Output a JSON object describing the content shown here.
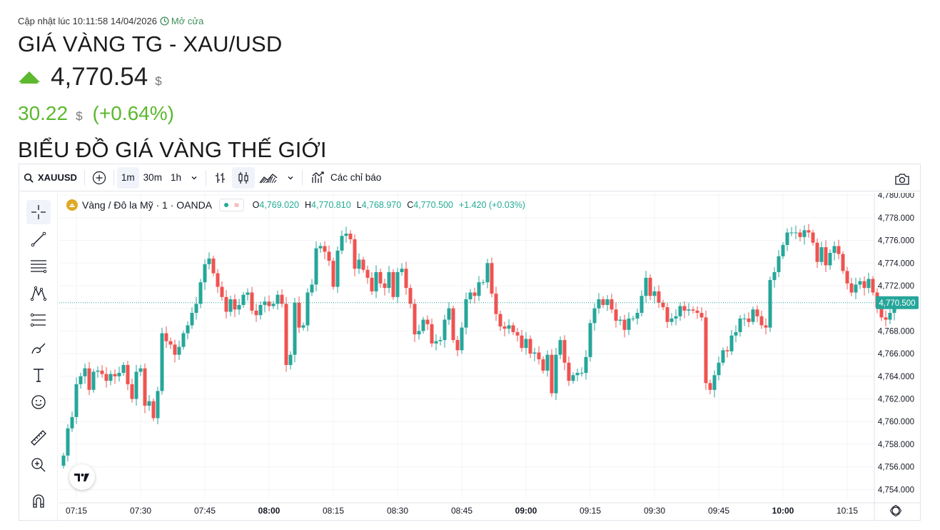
{
  "header": {
    "updated": "Cập nhật lúc 10:11:58 14/04/2026",
    "market_status": "Mở cửa",
    "title": "GIÁ VÀNG TG - XAU/USD",
    "price": "4,770.54",
    "price_currency": "$",
    "change": "30.22",
    "change_currency": "$",
    "change_pct": "(+0.64%)",
    "section_title": "BIỂU ĐỒ GIÁ VÀNG THẾ GIỚI"
  },
  "toolbar": {
    "symbol": "XAUUSD",
    "intervals": [
      "1m",
      "30m",
      "1h"
    ],
    "active_interval": "1m",
    "indicators_label": "Các chỉ báo"
  },
  "legend": {
    "name": "Vàng / Đô la Mỹ · 1 · OANDA",
    "o_label": "O",
    "o": "4,769.020",
    "h_label": "H",
    "h": "4,770.810",
    "l_label": "L",
    "l": "4,768.970",
    "c_label": "C",
    "c": "4,770.500",
    "change": "+1.420 (+0.03%)"
  },
  "colors": {
    "up": "#26a69a",
    "down": "#ef5350",
    "accent_green": "#5cb82e",
    "price_tag": "#26a69a"
  },
  "chart_data": {
    "type": "candlestick",
    "interval": "1m",
    "x_ticks": [
      "07:15",
      "07:30",
      "07:45",
      "08:00",
      "08:15",
      "08:30",
      "08:45",
      "09:00",
      "09:15",
      "09:30",
      "09:45",
      "10:00",
      "10:15"
    ],
    "x_ticks_bold": [
      "08:00",
      "09:00",
      "10:00"
    ],
    "y_ticks": [
      "4,756.000",
      "4,758.000",
      "4,760.000",
      "4,762.000",
      "4,764.000",
      "4,766.000",
      "4,768.000",
      "4,770.000",
      "4,772.000",
      "4,774.000",
      "4,776.000",
      "4,778.000",
      "4,780.000"
    ],
    "y_ticks_shown": [
      "4,754.000",
      "4,756.000",
      "4,758.000",
      "4,760.000",
      "4,762.000",
      "4,764.000",
      "4,766.000",
      "4,768.000",
      "4,772.000",
      "4,774.000",
      "4,776.000",
      "4,778.000"
    ],
    "ylim": [
      4753.2,
      4780.2
    ],
    "last_price": "4,770.500",
    "last_value": 4770.5,
    "start_time": "07:12",
    "closes": [
      4757.0,
      4759.4,
      4760.4,
      4763.3,
      4764.0,
      4764.7,
      4762.8,
      4764.4,
      4764.5,
      4764.2,
      4763.6,
      4764.2,
      4764.0,
      4764.3,
      4765.0,
      4763.3,
      4762.0,
      4764.4,
      4764.7,
      4761.4,
      4761.8,
      4760.3,
      4762.7,
      4767.8,
      4767.1,
      4766.8,
      4765.9,
      4766.6,
      4767.8,
      4768.5,
      4769.6,
      4770.4,
      4772.3,
      4773.9,
      4774.4,
      4773.1,
      4771.9,
      4771.0,
      4769.7,
      4770.8,
      4769.9,
      4770.3,
      4771.2,
      4771.4,
      4769.8,
      4769.4,
      4770.3,
      4770.6,
      4770.2,
      4770.4,
      4771.2,
      4770.4,
      4765.0,
      4765.9,
      4770.5,
      4768.3,
      4768.5,
      4771.4,
      4772.1,
      4775.3,
      4775.5,
      4775.0,
      4774.2,
      4771.9,
      4775.1,
      4776.4,
      4776.6,
      4776.1,
      4773.5,
      4774.3,
      4773.4,
      4772.7,
      4771.5,
      4773.2,
      4772.2,
      4771.8,
      4773.2,
      4771.0,
      4773.2,
      4773.5,
      4771.8,
      4770.4,
      4767.7,
      4768.0,
      4769.0,
      4768.6,
      4766.9,
      4767.1,
      4767.2,
      4769.0,
      4770.0,
      4767.2,
      4766.3,
      4768.3,
      4770.8,
      4771.4,
      4771.1,
      4772.3,
      4772.3,
      4774.0,
      4771.3,
      4769.5,
      4768.4,
      4768.2,
      4768.5,
      4767.9,
      4767.6,
      4766.5,
      4767.3,
      4766.0,
      4766.1,
      4765.5,
      4764.5,
      4765.9,
      4762.5,
      4765.9,
      4767.2,
      4765.2,
      4763.6,
      4764.1,
      4764.3,
      4764.3,
      4765.7,
      4768.7,
      4770.0,
      4770.8,
      4770.3,
      4770.8,
      4769.9,
      4768.9,
      4769.0,
      4768.1,
      4769.1,
      4769.1,
      4769.6,
      4771.1,
      4772.7,
      4771.1,
      4771.5,
      4770.5,
      4770.1,
      4768.8,
      4769.1,
      4769.3,
      4770.2,
      4769.8,
      4769.9,
      4769.8,
      4769.6,
      4769.2,
      4763.4,
      4762.8,
      4764.1,
      4765.2,
      4766.3,
      4766.2,
      4767.6,
      4767.9,
      4769.1,
      4769.1,
      4768.8,
      4769.9,
      4769.3,
      4768.5,
      4768.3,
      4772.5,
      4773.2,
      4774.6,
      4775.6,
      4776.7,
      4776.7,
      4776.7,
      4776.3,
      4776.9,
      4776.7,
      4775.8,
      4774.1,
      4775.4,
      4773.8,
      4774.9,
      4775.5,
      4774.8,
      4773.3,
      4772.2,
      4771.4,
      4772.1,
      4772.4,
      4771.8,
      4772.6,
      4771.4,
      4770.1,
      4769.2,
      4769.0,
      4769.6,
      4770.5
    ]
  }
}
